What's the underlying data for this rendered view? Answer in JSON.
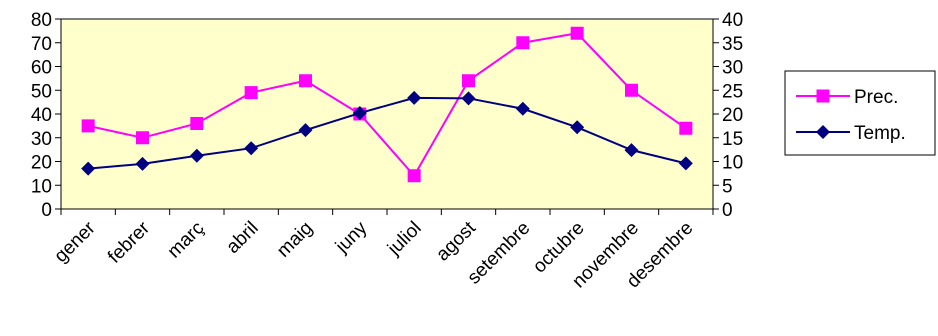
{
  "chart_data": {
    "type": "line",
    "categories": [
      "gener",
      "febrer",
      "març",
      "abril",
      "maig",
      "juny",
      "juliol",
      "agost",
      "setembre",
      "octubre",
      "novembre",
      "desembre"
    ],
    "series": [
      {
        "name": "Prec.",
        "axis": "left",
        "color": "#ff00ff",
        "marker": "square",
        "values": [
          35,
          30,
          36,
          49,
          54,
          40,
          14,
          54,
          70,
          74,
          50,
          34
        ]
      },
      {
        "name": "Temp.",
        "axis": "right",
        "color": "#000080",
        "marker": "diamond",
        "values": [
          8.5,
          9.5,
          11.2,
          12.8,
          16.6,
          20.2,
          23.4,
          23.3,
          21.1,
          17.2,
          12.4,
          9.6
        ]
      }
    ],
    "y_left": {
      "range": [
        0,
        80
      ],
      "ticks": [
        "0",
        "10",
        "20",
        "30",
        "40",
        "50",
        "60",
        "70",
        "80"
      ]
    },
    "y_right": {
      "range": [
        0,
        40
      ],
      "ticks": [
        "0",
        "5",
        "10",
        "15",
        "20",
        "25",
        "30",
        "35",
        "40"
      ]
    },
    "plot_background": "#ffffcc",
    "grid": false,
    "legend_position": "right"
  }
}
